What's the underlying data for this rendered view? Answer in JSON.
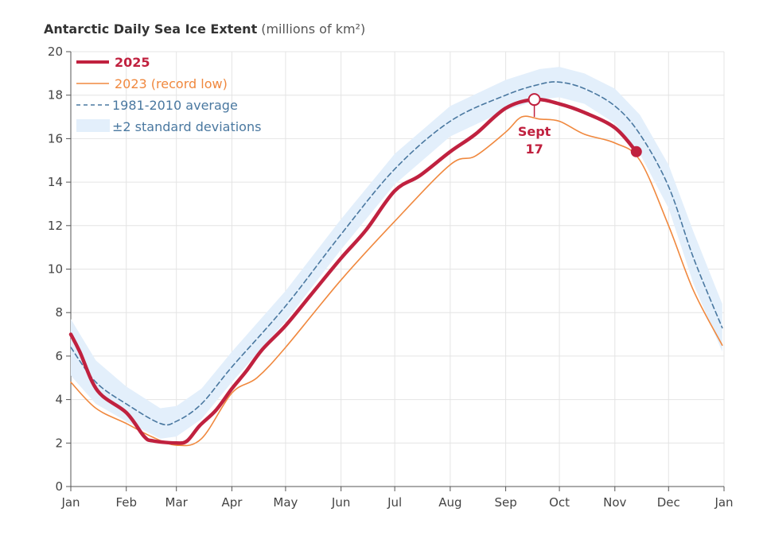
{
  "chart_data": {
    "type": "line",
    "title": "Antarctic Daily Sea Ice Extent",
    "title_units": "(millions of km²)",
    "xlim": [
      "01-01",
      "12-31"
    ],
    "ylim": [
      0,
      20
    ],
    "grid": true,
    "legend_position": "top-left",
    "x_tick_labels": [
      "Jan",
      "Feb",
      "Mar",
      "Apr",
      "May",
      "Jun",
      "Jul",
      "Aug",
      "Sep",
      "Oct",
      "Nov",
      "Dec",
      "Jan"
    ],
    "y_ticks": [
      0,
      2,
      4,
      6,
      8,
      10,
      12,
      14,
      16,
      18,
      20
    ],
    "colors": {
      "s2025": "#c0213f",
      "s2023": "#f0883e",
      "average": "#4a78a0",
      "band": "#e3effb"
    },
    "series": [
      {
        "name": "2025",
        "key": "s2025",
        "x": [
          "01-01",
          "01-06",
          "01-16",
          "02-01",
          "02-11",
          "02-16",
          "03-01",
          "03-07",
          "03-14",
          "03-23",
          "04-01",
          "04-09",
          "04-18",
          "05-01",
          "05-15",
          "06-01",
          "06-15",
          "07-01",
          "07-15",
          "08-01",
          "08-15",
          "09-01",
          "09-17",
          "10-01",
          "10-15",
          "11-01",
          "11-13"
        ],
        "y": [
          7.0,
          6.2,
          4.4,
          3.4,
          2.3,
          2.1,
          2.0,
          2.1,
          2.8,
          3.5,
          4.5,
          5.3,
          6.3,
          7.4,
          8.8,
          10.5,
          11.8,
          13.6,
          14.3,
          15.4,
          16.2,
          17.4,
          17.8,
          17.6,
          17.2,
          16.5,
          15.4
        ]
      },
      {
        "name": "2023 (record low)",
        "key": "s2023",
        "x": [
          "01-01",
          "01-15",
          "02-01",
          "02-15",
          "03-01",
          "03-15",
          "04-01",
          "04-15",
          "05-01",
          "06-01",
          "07-01",
          "08-01",
          "08-15",
          "09-01",
          "09-10",
          "09-20",
          "10-01",
          "10-15",
          "11-01",
          "11-15",
          "12-01",
          "12-15",
          "12-31"
        ],
        "y": [
          4.8,
          3.6,
          2.9,
          2.3,
          1.9,
          2.2,
          4.3,
          5.0,
          6.4,
          9.5,
          12.2,
          14.8,
          15.2,
          16.3,
          17.0,
          16.9,
          16.8,
          16.2,
          15.8,
          15.0,
          12.0,
          9.0,
          6.5
        ]
      },
      {
        "name": "1981-2010 average",
        "key": "average",
        "x": [
          "01-01",
          "01-15",
          "02-01",
          "02-20",
          "03-01",
          "03-15",
          "04-01",
          "05-01",
          "06-01",
          "07-01",
          "08-01",
          "09-01",
          "09-20",
          "10-01",
          "10-15",
          "11-01",
          "11-15",
          "12-01",
          "12-15",
          "12-31"
        ],
        "y": [
          6.4,
          4.8,
          3.8,
          2.9,
          3.0,
          3.8,
          5.5,
          8.3,
          11.6,
          14.6,
          16.8,
          18.0,
          18.5,
          18.6,
          18.3,
          17.5,
          16.2,
          13.8,
          10.5,
          7.3
        ]
      }
    ],
    "band": {
      "name": "±2 standard deviations",
      "half_width": [
        1.3,
        1.0,
        0.8,
        0.7,
        0.7,
        0.7,
        0.7,
        0.7,
        0.7,
        0.7,
        0.7,
        0.7,
        0.7,
        0.7,
        0.7,
        0.8,
        0.9,
        1.0,
        1.2,
        1.1
      ]
    },
    "annotation": {
      "line1": "Sept",
      "line2": "17",
      "x": "09-17",
      "y": 17.8
    },
    "endpoint": {
      "x": "11-13",
      "y": 15.4
    }
  }
}
